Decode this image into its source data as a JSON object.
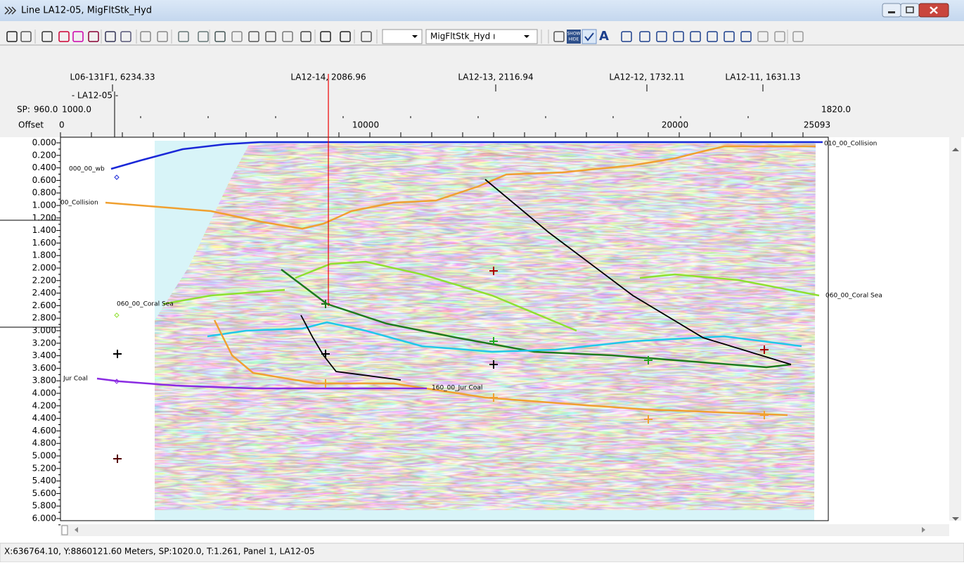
{
  "window": {
    "title": "Line LA12-05, MigFltStk_Hyd"
  },
  "toolbar": {
    "dataset_dropdown": "MigFltStk_Hyd ı",
    "show_hide": [
      "SHOW",
      "HIDE"
    ],
    "text_tool": "A"
  },
  "header": {
    "wells": [
      "L06-131F1, 6234.33",
      "LA12-14, 2086.96",
      "LA12-13, 2116.94",
      "LA12-12, 1732.11",
      "LA12-11, 1631.13"
    ],
    "line_label": "- LA12-05 -",
    "sp_label": "SP:",
    "sp_ticks": [
      "960.0",
      "1000.0",
      "1820.0"
    ],
    "offset_label": "Offset",
    "offset_ticks": [
      "0",
      "10000",
      "20000",
      "25093"
    ]
  },
  "time_axis": [
    "0.000",
    "0.200",
    "0.400",
    "0.600",
    "0.800",
    "1.000",
    "1.200",
    "1.400",
    "1.600",
    "1.800",
    "2.000",
    "2.200",
    "2.400",
    "2.600",
    "2.800",
    "3.000",
    "3.200",
    "3.400",
    "3.600",
    "3.800",
    "4.000",
    "4.200",
    "4.400",
    "4.600",
    "4.800",
    "5.000",
    "5.200",
    "5.400",
    "5.600",
    "5.800",
    "6.000"
  ],
  "horizon_labels": [
    "000_00_wb",
    "00_Collision",
    "060_00_Coral Sea",
    "Jur Coal",
    "010_00_Collision",
    "060_00_Coral Sea",
    "160_00_Jur Coal"
  ],
  "status_bar": "X:636764.10, Y:8860121.60 Meters,  SP:1020.0,  T:1.261,  Panel 1,  LA12-05"
}
